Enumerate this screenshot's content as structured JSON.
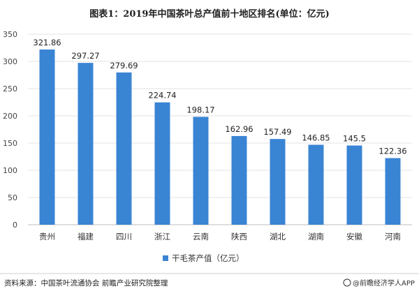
{
  "chart_data": {
    "type": "bar",
    "title": "图表1：2019年中国茶叶总产值前十地区排名(单位：亿元)",
    "categories": [
      "贵州",
      "福建",
      "四川",
      "浙江",
      "云南",
      "陕西",
      "湖北",
      "湖南",
      "安徽",
      "河南"
    ],
    "series": [
      {
        "name": "干毛茶产值（亿元）",
        "values": [
          321.86,
          297.27,
          279.69,
          224.74,
          198.17,
          162.96,
          157.49,
          146.85,
          145.5,
          122.36
        ]
      }
    ],
    "value_labels": [
      "321.86",
      "297.27",
      "279.69",
      "224.74",
      "198.17",
      "162.96",
      "157.49",
      "146.85",
      "145.5",
      "122.36"
    ],
    "ylim": [
      0,
      350
    ],
    "yticks": [
      "0",
      "50",
      "100",
      "150",
      "200",
      "250",
      "300",
      "350"
    ],
    "bar_color": "#3a84d4",
    "grid": true,
    "legend": "bottom-center"
  },
  "footer": {
    "source": "资料来源：中国茶叶流通协会 前瞻产业研究院整理",
    "brand": "@前瞻经济学人APP"
  }
}
